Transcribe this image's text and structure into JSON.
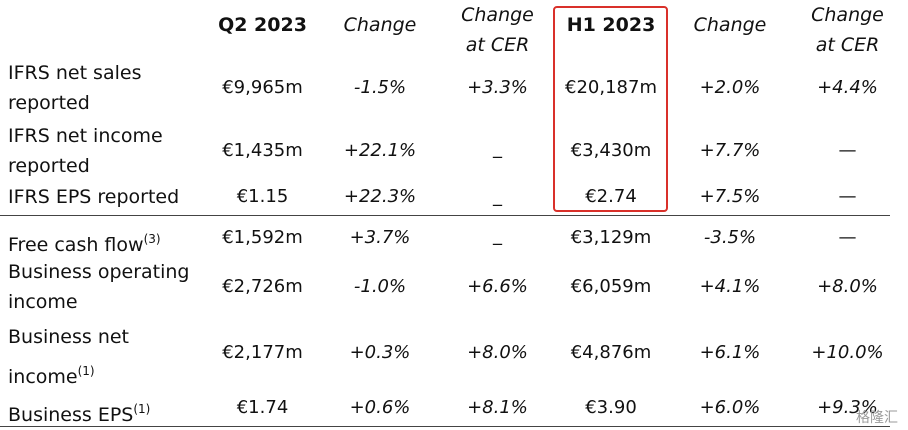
{
  "headers": [
    {
      "text": "Q2 2023",
      "style": "bold"
    },
    {
      "text": "Change",
      "style": "italic"
    },
    {
      "text": "Change\nat CER",
      "style": "italic"
    },
    {
      "text": "H1 2023",
      "style": "bold"
    },
    {
      "text": "Change",
      "style": "italic"
    },
    {
      "text": "Change\nat CER",
      "style": "italic"
    }
  ],
  "rows": [
    {
      "label": "IFRS net sales\nreported",
      "sup": "",
      "values": [
        "€9,965m",
        "-1.5%",
        "+3.3%",
        "€20,187m",
        "+2.0%",
        "+4.4%"
      ]
    },
    {
      "label": "IFRS net income\nreported",
      "sup": "",
      "values": [
        "€1,435m",
        "+22.1%",
        "_",
        "€3,430m",
        "+7.7%",
        "—"
      ]
    },
    {
      "label": "IFRS EPS reported",
      "sup": "",
      "values": [
        "€1.15",
        "+22.3%",
        "_",
        "€2.74",
        "+7.5%",
        "—"
      ]
    },
    {
      "label": "Free cash flow",
      "sup": "(3)",
      "values": [
        "€1,592m",
        "+3.7%",
        "_",
        "€3,129m",
        "-3.5%",
        "—"
      ]
    },
    {
      "label": "Business operating\nincome",
      "sup": "",
      "values": [
        "€2,726m",
        "-1.0%",
        "+6.6%",
        "€6,059m",
        "+4.1%",
        "+8.0%"
      ]
    },
    {
      "label": "Business net\nincome",
      "sup": "(1)",
      "values": [
        "€2,177m",
        "+0.3%",
        "+8.0%",
        "€4,876m",
        "+6.1%",
        "+10.0%"
      ]
    },
    {
      "label": "Business EPS",
      "sup": "(1)",
      "values": [
        "€1.74",
        "+0.6%",
        "+8.1%",
        "€3.90",
        "+6.0%",
        "+9.3%"
      ]
    }
  ],
  "watermark": "格隆汇"
}
